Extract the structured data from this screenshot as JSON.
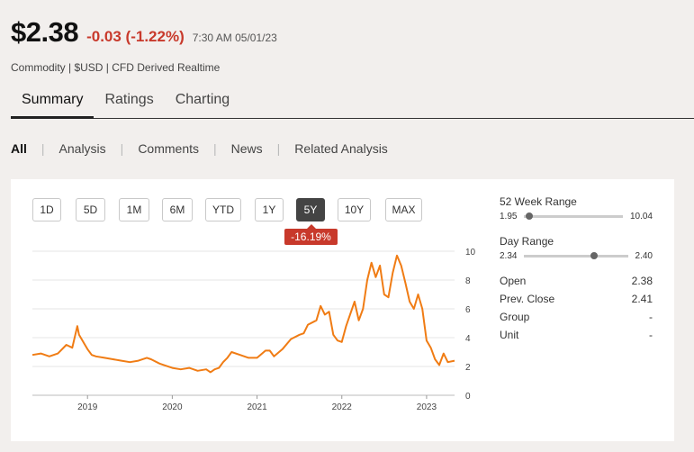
{
  "header": {
    "price": "$2.38",
    "change": "-0.03 (-1.22%)",
    "time": "7:30 AM 05/01/23",
    "meta": "Commodity | $USD | CFD Derived Realtime"
  },
  "tabs": [
    {
      "label": "Summary",
      "active": true
    },
    {
      "label": "Ratings",
      "active": false
    },
    {
      "label": "Charting",
      "active": false
    }
  ],
  "subnav": [
    {
      "label": "All",
      "active": true
    },
    {
      "label": "Analysis",
      "active": false
    },
    {
      "label": "Comments",
      "active": false
    },
    {
      "label": "News",
      "active": false
    },
    {
      "label": "Related Analysis",
      "active": false
    }
  ],
  "ranges": [
    {
      "label": "1D",
      "active": false
    },
    {
      "label": "5D",
      "active": false
    },
    {
      "label": "1M",
      "active": false
    },
    {
      "label": "6M",
      "active": false
    },
    {
      "label": "YTD",
      "active": false
    },
    {
      "label": "1Y",
      "active": false
    },
    {
      "label": "5Y",
      "active": true
    },
    {
      "label": "10Y",
      "active": false
    },
    {
      "label": "MAX",
      "active": false
    }
  ],
  "performance_badge": "-16.19%",
  "stats": {
    "week52": {
      "title": "52 Week Range",
      "low": "1.95",
      "high": "10.04",
      "current_fraction": 0.05
    },
    "day": {
      "title": "Day Range",
      "low": "2.34",
      "high": "2.40",
      "current_fraction": 0.67
    },
    "rows": [
      {
        "label": "Open",
        "value": "2.38"
      },
      {
        "label": "Prev. Close",
        "value": "2.41"
      },
      {
        "label": "Group",
        "value": "-"
      },
      {
        "label": "Unit",
        "value": "-"
      }
    ]
  },
  "chart_data": {
    "type": "line",
    "color": "#f07c14",
    "xlim": [
      2018.35,
      2023.33
    ],
    "ylim": [
      0,
      10
    ],
    "x_ticks": [
      "2019",
      "2020",
      "2021",
      "2022",
      "2023"
    ],
    "y_ticks": [
      "0",
      "2",
      "4",
      "6",
      "8",
      "10"
    ],
    "grid": true,
    "series": [
      {
        "x": [
          2018.35,
          2018.45,
          2018.55,
          2018.65,
          2018.75,
          2018.82,
          2018.88,
          2018.9,
          2018.95,
          2019.0,
          2019.05,
          2019.1,
          2019.2,
          2019.3,
          2019.4,
          2019.5,
          2019.6,
          2019.7,
          2019.75,
          2019.85,
          2019.9,
          2020.0,
          2020.1,
          2020.2,
          2020.3,
          2020.4,
          2020.45,
          2020.5,
          2020.55,
          2020.6,
          2020.65,
          2020.7,
          2020.8,
          2020.9,
          2021.0,
          2021.1,
          2021.15,
          2021.2,
          2021.3,
          2021.4,
          2021.5,
          2021.55,
          2021.6,
          2021.7,
          2021.75,
          2021.8,
          2021.85,
          2021.9,
          2021.95,
          2022.0,
          2022.05,
          2022.15,
          2022.2,
          2022.25,
          2022.3,
          2022.35,
          2022.4,
          2022.45,
          2022.5,
          2022.55,
          2022.6,
          2022.65,
          2022.7,
          2022.75,
          2022.8,
          2022.85,
          2022.9,
          2022.95,
          2023.0,
          2023.05,
          2023.1,
          2023.15,
          2023.2,
          2023.25,
          2023.33
        ],
        "y": [
          2.8,
          2.9,
          2.7,
          2.9,
          3.5,
          3.3,
          4.8,
          4.2,
          3.7,
          3.2,
          2.8,
          2.7,
          2.6,
          2.5,
          2.4,
          2.3,
          2.4,
          2.6,
          2.5,
          2.2,
          2.1,
          1.9,
          1.8,
          1.9,
          1.7,
          1.8,
          1.6,
          1.8,
          1.9,
          2.3,
          2.6,
          3.0,
          2.8,
          2.6,
          2.6,
          3.1,
          3.1,
          2.7,
          3.2,
          3.9,
          4.2,
          4.3,
          4.9,
          5.2,
          6.2,
          5.6,
          5.8,
          4.2,
          3.8,
          3.7,
          4.8,
          6.5,
          5.2,
          6.0,
          8.0,
          9.2,
          8.2,
          9.0,
          7.0,
          6.8,
          8.5,
          9.7,
          9.0,
          7.8,
          6.5,
          6.0,
          7.0,
          6.0,
          3.8,
          3.3,
          2.5,
          2.1,
          2.9,
          2.3,
          2.4
        ]
      }
    ]
  }
}
